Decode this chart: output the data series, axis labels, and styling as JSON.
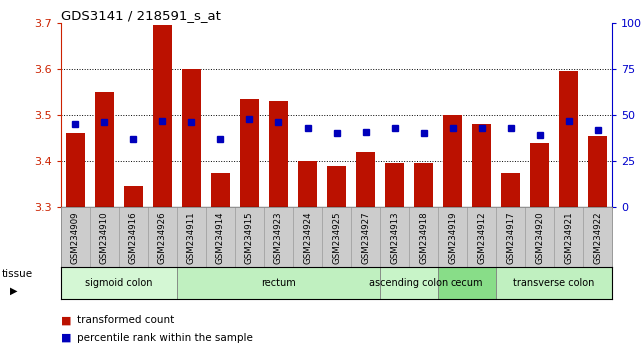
{
  "title": "GDS3141 / 218591_s_at",
  "samples": [
    "GSM234909",
    "GSM234910",
    "GSM234916",
    "GSM234926",
    "GSM234911",
    "GSM234914",
    "GSM234915",
    "GSM234923",
    "GSM234924",
    "GSM234925",
    "GSM234927",
    "GSM234913",
    "GSM234918",
    "GSM234919",
    "GSM234912",
    "GSM234917",
    "GSM234920",
    "GSM234921",
    "GSM234922"
  ],
  "bar_values": [
    3.46,
    3.55,
    3.345,
    3.695,
    3.6,
    3.375,
    3.535,
    3.53,
    3.4,
    3.39,
    3.42,
    3.395,
    3.395,
    3.5,
    3.48,
    3.375,
    3.44,
    3.595,
    3.455
  ],
  "dot_pct": [
    45,
    46,
    37,
    47,
    46,
    37,
    48,
    46,
    43,
    40,
    41,
    43,
    40,
    43,
    43,
    43,
    39,
    47,
    42
  ],
  "ymin": 3.3,
  "ymax": 3.7,
  "yticks": [
    3.3,
    3.4,
    3.5,
    3.6,
    3.7
  ],
  "right_yticks": [
    0,
    25,
    50,
    75,
    100
  ],
  "bar_color": "#bb1100",
  "dot_color": "#0000bb",
  "tissue_groups": [
    {
      "label": "sigmoid colon",
      "start": 0,
      "end": 4,
      "color": "#d4f7d4"
    },
    {
      "label": "rectum",
      "start": 4,
      "end": 11,
      "color": "#c0f0c0"
    },
    {
      "label": "ascending colon",
      "start": 11,
      "end": 13,
      "color": "#c8f4c8"
    },
    {
      "label": "cecum",
      "start": 13,
      "end": 15,
      "color": "#88dd88"
    },
    {
      "label": "transverse colon",
      "start": 15,
      "end": 19,
      "color": "#c0f0c0"
    }
  ],
  "legend_items": [
    {
      "label": "transformed count",
      "color": "#bb1100"
    },
    {
      "label": "percentile rank within the sample",
      "color": "#0000bb"
    }
  ]
}
